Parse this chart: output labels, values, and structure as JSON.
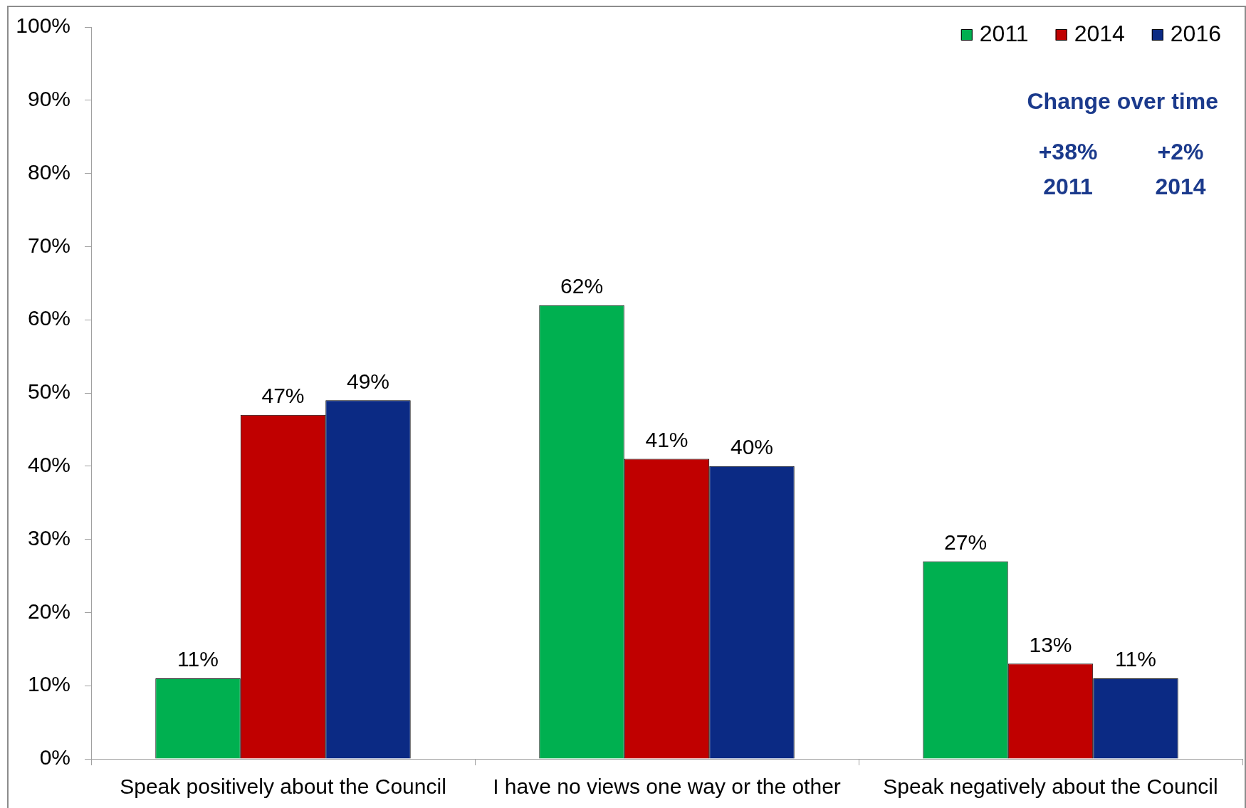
{
  "chart_data": {
    "type": "bar",
    "categories": [
      "Speak positively about the Council",
      "I have no views one way or the other",
      "Speak negatively about the Council"
    ],
    "series": [
      {
        "name": "2011",
        "color": "#00b050",
        "values": [
          11,
          62,
          27
        ],
        "value_labels": [
          "11%",
          "62%",
          "27%"
        ]
      },
      {
        "name": "2014",
        "color": "#c00000",
        "values": [
          47,
          41,
          13
        ],
        "value_labels": [
          "47%",
          "41%",
          "13%"
        ]
      },
      {
        "name": "2016",
        "color": "#0b2a84",
        "values": [
          49,
          40,
          11
        ],
        "value_labels": [
          "49%",
          "40%",
          "11%"
        ]
      }
    ],
    "ylim": [
      0,
      100
    ],
    "yticks": [
      {
        "value": 0,
        "label": "0%"
      },
      {
        "value": 10,
        "label": "10%"
      },
      {
        "value": 20,
        "label": "20%"
      },
      {
        "value": 30,
        "label": "30%"
      },
      {
        "value": 40,
        "label": "40%"
      },
      {
        "value": 50,
        "label": "50%"
      },
      {
        "value": 60,
        "label": "60%"
      },
      {
        "value": 70,
        "label": "70%"
      },
      {
        "value": 80,
        "label": "80%"
      },
      {
        "value": 90,
        "label": "90%"
      },
      {
        "value": 100,
        "label": "100%"
      }
    ],
    "legend": "top right",
    "annotations": [
      "Change over time",
      "+38%",
      "+2%",
      "2011",
      "2014"
    ]
  }
}
